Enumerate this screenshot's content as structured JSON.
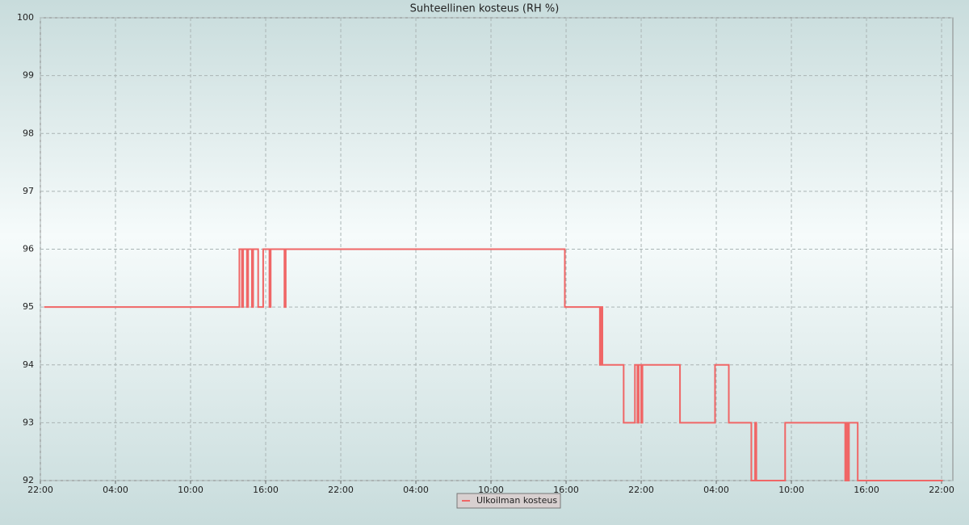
{
  "chart_data": {
    "type": "line",
    "step": "post",
    "title": "Suhteellinen kosteus (RH %)",
    "xlim": [
      0,
      72.9
    ],
    "ylim": [
      92,
      100
    ],
    "xticks": [
      {
        "value": 0,
        "label": "22:00"
      },
      {
        "value": 6,
        "label": "04:00"
      },
      {
        "value": 12,
        "label": "10:00"
      },
      {
        "value": 18,
        "label": "16:00"
      },
      {
        "value": 24,
        "label": "22:00"
      },
      {
        "value": 30,
        "label": "04:00"
      },
      {
        "value": 36,
        "label": "10:00"
      },
      {
        "value": 42,
        "label": "16:00"
      },
      {
        "value": 48,
        "label": "22:00"
      },
      {
        "value": 54,
        "label": "04:00"
      },
      {
        "value": 60,
        "label": "10:00"
      },
      {
        "value": 66,
        "label": "16:00"
      },
      {
        "value": 72,
        "label": "22:00"
      }
    ],
    "yticks": [
      92,
      93,
      94,
      95,
      96,
      97,
      98,
      99,
      100
    ],
    "grid": true,
    "legend": "bottom",
    "series": [
      {
        "name": "Ulkoilman kosteus",
        "color": "#f06666",
        "x": [
          0.3,
          15.9,
          16.1,
          16.2,
          16.5,
          16.6,
          16.9,
          17.0,
          17.4,
          17.8,
          18.3,
          18.4,
          19.5,
          19.6,
          41.9,
          44.7,
          44.8,
          44.9,
          46.6,
          47.5,
          47.7,
          47.8,
          48.0,
          48.1,
          51.1,
          53.9,
          55.0,
          56.8,
          57.1,
          57.2,
          59.5,
          64.3,
          64.4,
          64.5,
          64.6,
          65.3,
          72.1
        ],
        "values": [
          95,
          96,
          95,
          96,
          95,
          96,
          95,
          96,
          95,
          96,
          95,
          96,
          95,
          96,
          95,
          94,
          95,
          94,
          93,
          94,
          93,
          94,
          93,
          94,
          93,
          94,
          93,
          92,
          93,
          92,
          93,
          92,
          93,
          92,
          93,
          92,
          92
        ]
      }
    ]
  }
}
